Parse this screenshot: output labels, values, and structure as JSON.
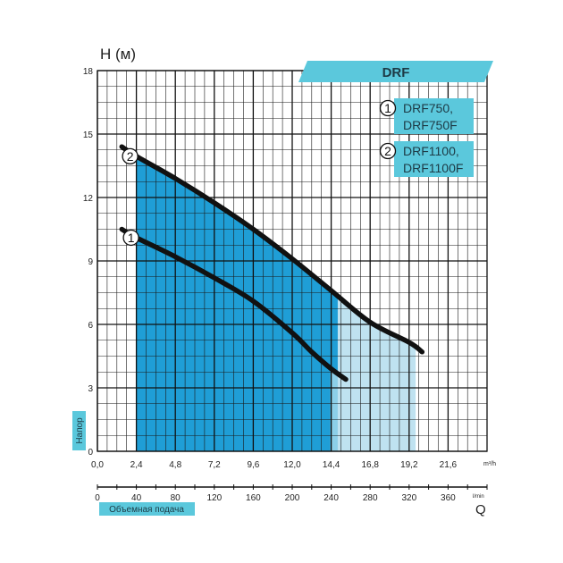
{
  "chart_data": {
    "type": "line",
    "title": "DRF",
    "ylabel": "H (м)",
    "ylabel_side": "Напор",
    "xlabel": "Q",
    "xlabel_side": "Объемная подача",
    "x_unit": "m³/h",
    "x2_unit": "l/min",
    "xlim": [
      0,
      24
    ],
    "ylim": [
      0,
      18
    ],
    "x2lim": [
      0,
      400
    ],
    "x_ticks": [
      "0,0",
      "2,4",
      "4,8",
      "7,2",
      "9,6",
      "12,0",
      "14,4",
      "16,8",
      "19,2",
      "21,6"
    ],
    "y_ticks": [
      "0",
      "3",
      "6",
      "9",
      "12",
      "15",
      "18"
    ],
    "x2_ticks": [
      "0",
      "40",
      "80",
      "120",
      "160",
      "200",
      "240",
      "280",
      "320",
      "360"
    ],
    "grid": true,
    "legend_position": "top-right",
    "series": [
      {
        "name": "1",
        "legend": [
          "DRF750,",
          "DRF750F"
        ],
        "x": [
          1.5,
          2.4,
          4.8,
          7.2,
          9.6,
          12.0,
          13.2,
          14.4,
          15.3
        ],
        "y": [
          10.5,
          10.1,
          9.2,
          8.2,
          7.1,
          5.6,
          4.7,
          3.9,
          3.4
        ],
        "operating_range": [
          2.4,
          14.8
        ]
      },
      {
        "name": "2",
        "legend": [
          "DRF1100,",
          "DRF1100F"
        ],
        "x": [
          1.5,
          2.4,
          4.8,
          7.2,
          9.6,
          12.0,
          14.4,
          16.8,
          19.2,
          20.0
        ],
        "y": [
          14.4,
          13.95,
          12.9,
          11.75,
          10.5,
          9.1,
          7.6,
          6.1,
          5.15,
          4.7
        ],
        "operating_range": [
          2.4,
          19.6
        ]
      }
    ],
    "colors": {
      "accent": "#5bc8dc",
      "range_light": "#bfe2f0",
      "range_mid": "#8ccfe8",
      "fill_dark": "#1f9ed6",
      "curve": "#111111",
      "grid": "#1a1a1a"
    }
  }
}
